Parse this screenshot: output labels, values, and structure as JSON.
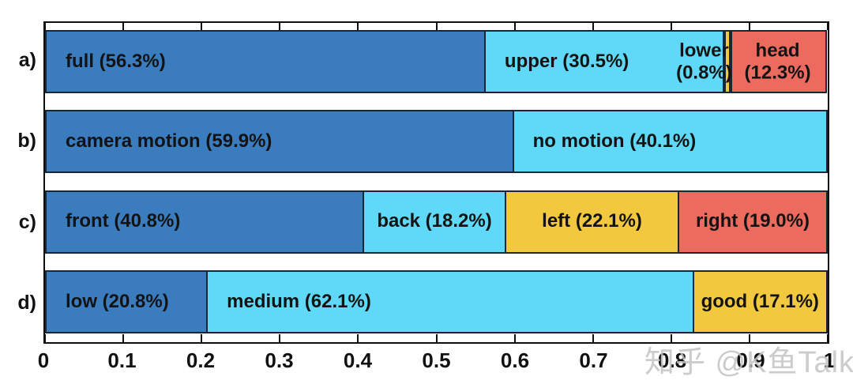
{
  "page": {
    "background": "#ffffff"
  },
  "watermark": {
    "text": "知乎 @K鱼Talk",
    "color": "#c4c4c4"
  },
  "colors": {
    "blue": "#3a7cbe",
    "cyan": "#5fd9f7",
    "yellow": "#f2c83e",
    "red": "#ec6a5e",
    "segment_border": "#1a2634",
    "plot_border": "#0f0f0f",
    "label_text": "#131313",
    "axis_text": "#111111"
  },
  "chart_data": {
    "type": "bar",
    "orientation": "horizontal",
    "stacked": true,
    "title": "",
    "xlabel": "",
    "ylabel": "",
    "xlim": [
      0,
      1
    ],
    "x_ticks": [
      "0",
      "0.1",
      "0.2",
      "0.3",
      "0.4",
      "0.5",
      "0.6",
      "0.7",
      "0.8",
      "0.9",
      "1"
    ],
    "tick_direction": "in",
    "grid": false,
    "legend_position": "none (labels inside segments)",
    "rows": [
      {
        "axis_label": "a)",
        "segments": [
          {
            "name": "full",
            "value": 56.3,
            "label": "full (56.3%)",
            "color": "blue",
            "label_align": "left"
          },
          {
            "name": "upper",
            "value": 30.5,
            "label": "upper (30.5%)",
            "color": "cyan",
            "label_align": "left"
          },
          {
            "name": "lower",
            "value": 0.8,
            "label": "lower\n(0.8%)",
            "color": "yellow",
            "label_align": "overlay",
            "label_center_pct": 84.2
          },
          {
            "name": "head",
            "value": 12.3,
            "label": "head\n(12.3%)",
            "color": "red",
            "label_align": "overlay",
            "label_center_pct": 93.6
          }
        ]
      },
      {
        "axis_label": "b)",
        "segments": [
          {
            "name": "camera motion",
            "value": 59.9,
            "label": "camera motion (59.9%)",
            "color": "blue",
            "label_align": "left"
          },
          {
            "name": "no motion",
            "value": 40.1,
            "label": "no motion (40.1%)",
            "color": "cyan",
            "label_align": "left"
          }
        ]
      },
      {
        "axis_label": "c)",
        "segments": [
          {
            "name": "front",
            "value": 40.8,
            "label": "front (40.8%)",
            "color": "blue",
            "label_align": "left"
          },
          {
            "name": "back",
            "value": 18.2,
            "label": "back (18.2%)",
            "color": "cyan",
            "label_align": "center"
          },
          {
            "name": "left",
            "value": 22.1,
            "label": "left (22.1%)",
            "color": "yellow",
            "label_align": "center"
          },
          {
            "name": "right",
            "value": 19.0,
            "label": "right (19.0%)",
            "color": "red",
            "label_align": "center"
          }
        ]
      },
      {
        "axis_label": "d)",
        "segments": [
          {
            "name": "low",
            "value": 20.8,
            "label": "low (20.8%)",
            "color": "blue",
            "label_align": "left"
          },
          {
            "name": "medium",
            "value": 62.1,
            "label": "medium (62.1%)",
            "color": "cyan",
            "label_align": "left"
          },
          {
            "name": "good",
            "value": 17.1,
            "label": "good (17.1%)",
            "color": "yellow",
            "label_align": "center"
          }
        ]
      }
    ]
  }
}
